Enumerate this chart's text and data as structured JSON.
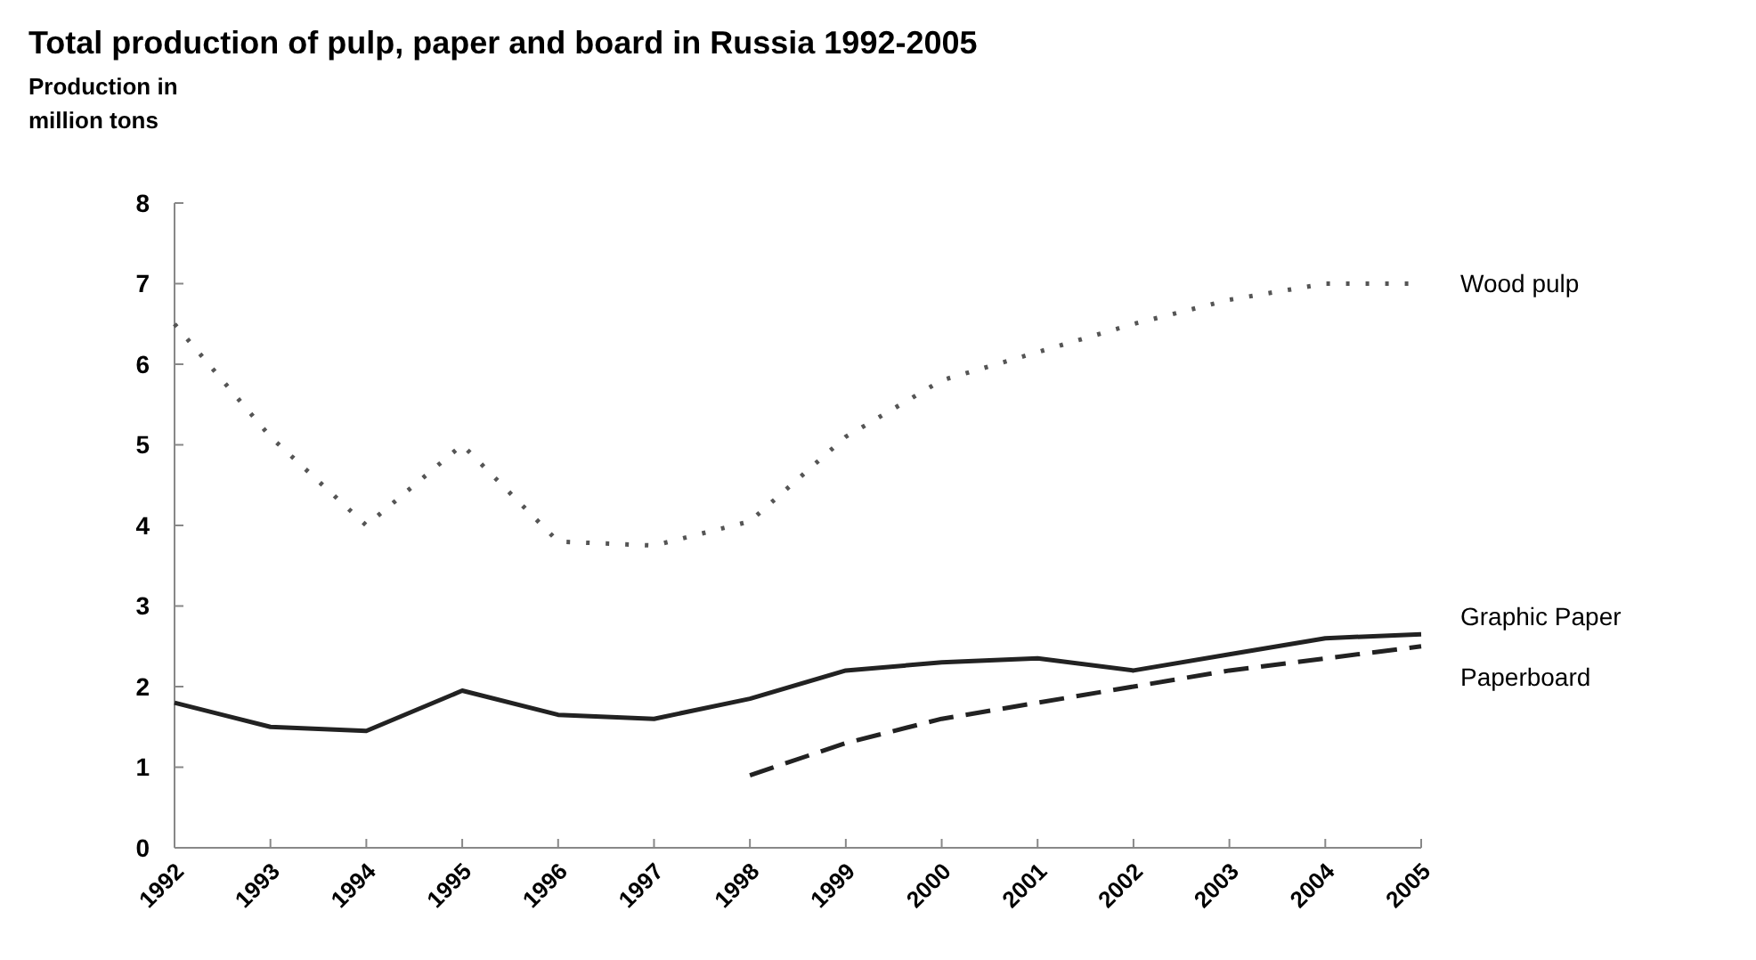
{
  "chart_data": {
    "type": "line",
    "title": "Total production of pulp, paper and board in Russia 1992-2005",
    "ylabel": "Production in million tons",
    "categories": [
      "1992",
      "1993",
      "1994",
      "1995",
      "1996",
      "1997",
      "1998",
      "1999",
      "2000",
      "2001",
      "2002",
      "2003",
      "2004",
      "2005"
    ],
    "ylim": [
      0,
      8
    ],
    "yticks": [
      0,
      1,
      2,
      3,
      4,
      5,
      6,
      7,
      8
    ],
    "grid": false,
    "series": [
      {
        "name": "Wood pulp",
        "color": "#555555",
        "line_style": "dotted",
        "values": [
          6.5,
          5.1,
          4.0,
          5.0,
          3.8,
          3.75,
          4.05,
          5.1,
          5.8,
          6.15,
          6.5,
          6.8,
          7.0,
          7.0
        ]
      },
      {
        "name": "Graphic Paper",
        "color": "#222222",
        "line_style": "solid",
        "values": [
          1.8,
          1.5,
          1.45,
          1.95,
          1.65,
          1.6,
          1.85,
          2.2,
          2.3,
          2.35,
          2.2,
          2.4,
          2.6,
          2.65
        ]
      },
      {
        "name": "Paperboard",
        "color": "#222222",
        "line_style": "dashed",
        "values": [
          null,
          null,
          null,
          null,
          null,
          null,
          0.9,
          1.3,
          1.6,
          1.8,
          2.0,
          2.2,
          2.35,
          2.5
        ]
      }
    ]
  }
}
